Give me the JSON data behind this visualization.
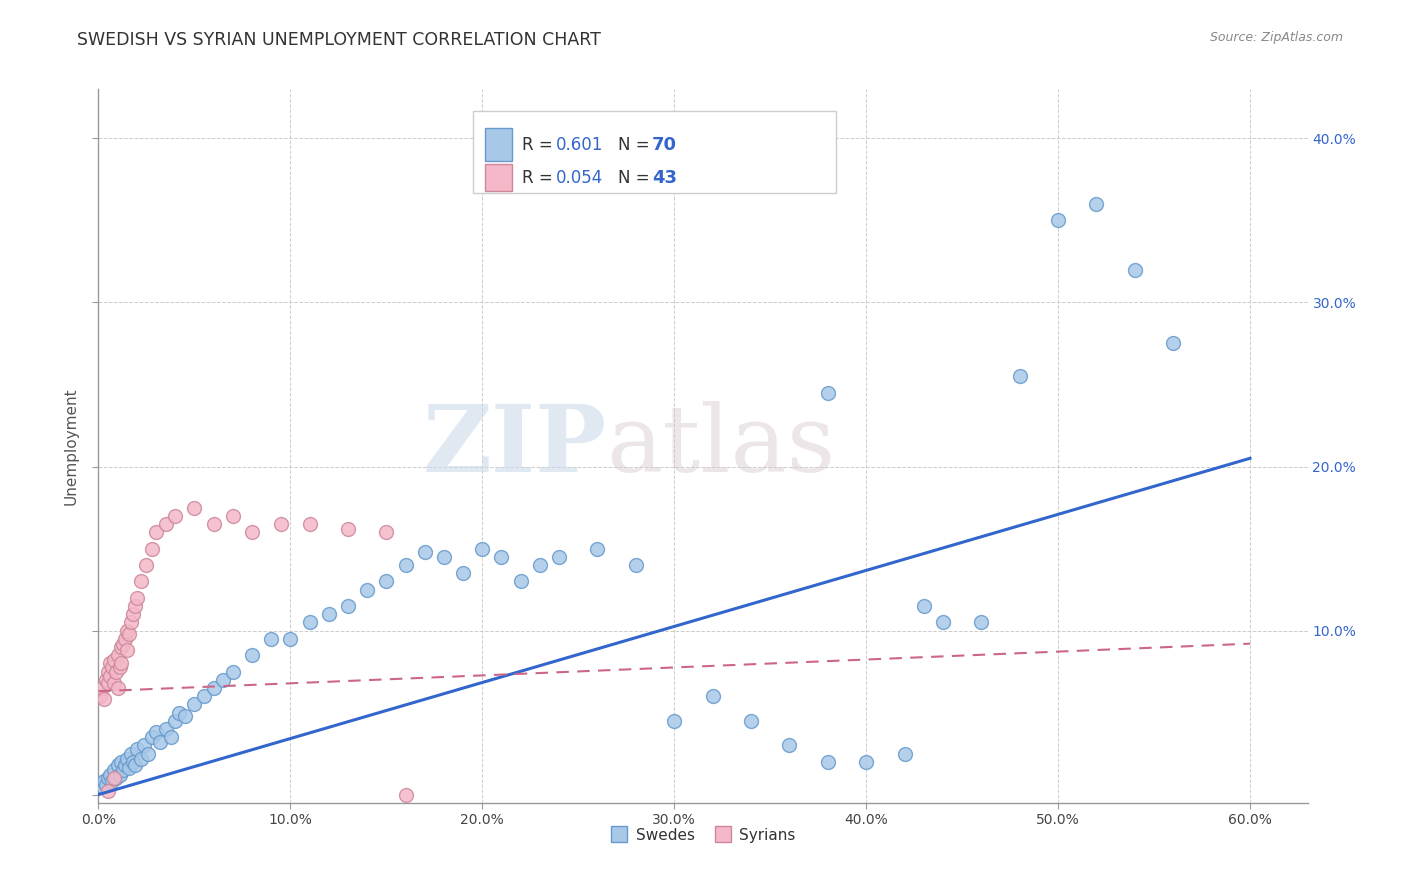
{
  "title": "SWEDISH VS SYRIAN UNEMPLOYMENT CORRELATION CHART",
  "source": "Source: ZipAtlas.com",
  "ylabel": "Unemployment",
  "xlim": [
    0.0,
    0.63
  ],
  "ylim": [
    -0.005,
    0.43
  ],
  "xticks": [
    0.0,
    0.1,
    0.2,
    0.3,
    0.4,
    0.5,
    0.6
  ],
  "yticks": [
    0.0,
    0.1,
    0.2,
    0.3,
    0.4
  ],
  "ytick_labels_right": [
    "",
    "10.0%",
    "20.0%",
    "30.0%",
    "40.0%"
  ],
  "xtick_labels": [
    "0.0%",
    "10.0%",
    "20.0%",
    "30.0%",
    "40.0%",
    "50.0%",
    "60.0%"
  ],
  "background_color": "#ffffff",
  "grid_color": "#cccccc",
  "swedes_color": "#a8c8e8",
  "swedes_edge_color": "#6699cc",
  "syrians_color": "#f4b8c8",
  "syrians_edge_color": "#cc8899",
  "swedes_line_color": "#3366cc",
  "syrians_line_color": "#cc6688",
  "swedes_R": "0.601",
  "swedes_N": "70",
  "syrians_R": "0.054",
  "syrians_N": "43",
  "swedes_trend_x": [
    0.0,
    0.6
  ],
  "swedes_trend_y": [
    0.0,
    0.205
  ],
  "syrians_trend_x": [
    0.0,
    0.6
  ],
  "syrians_trend_y": [
    0.063,
    0.092
  ],
  "swedes_x": [
    0.002,
    0.003,
    0.004,
    0.005,
    0.006,
    0.007,
    0.008,
    0.009,
    0.01,
    0.011,
    0.012,
    0.013,
    0.014,
    0.015,
    0.016,
    0.017,
    0.018,
    0.019,
    0.02,
    0.022,
    0.024,
    0.026,
    0.028,
    0.03,
    0.032,
    0.035,
    0.038,
    0.04,
    0.042,
    0.045,
    0.05,
    0.055,
    0.06,
    0.065,
    0.07,
    0.08,
    0.09,
    0.1,
    0.11,
    0.12,
    0.13,
    0.14,
    0.15,
    0.16,
    0.17,
    0.18,
    0.19,
    0.2,
    0.21,
    0.22,
    0.23,
    0.24,
    0.26,
    0.28,
    0.3,
    0.32,
    0.34,
    0.36,
    0.38,
    0.4,
    0.42,
    0.44,
    0.46,
    0.48,
    0.5,
    0.52,
    0.54,
    0.56,
    0.38,
    0.43
  ],
  "swedes_y": [
    0.005,
    0.008,
    0.006,
    0.01,
    0.012,
    0.008,
    0.015,
    0.01,
    0.018,
    0.012,
    0.02,
    0.015,
    0.018,
    0.022,
    0.016,
    0.025,
    0.02,
    0.018,
    0.028,
    0.022,
    0.03,
    0.025,
    0.035,
    0.038,
    0.032,
    0.04,
    0.035,
    0.045,
    0.05,
    0.048,
    0.055,
    0.06,
    0.065,
    0.07,
    0.075,
    0.085,
    0.095,
    0.095,
    0.105,
    0.11,
    0.115,
    0.125,
    0.13,
    0.14,
    0.148,
    0.145,
    0.135,
    0.15,
    0.145,
    0.13,
    0.14,
    0.145,
    0.15,
    0.14,
    0.045,
    0.06,
    0.045,
    0.03,
    0.02,
    0.02,
    0.025,
    0.105,
    0.105,
    0.255,
    0.35,
    0.36,
    0.32,
    0.275,
    0.245,
    0.115
  ],
  "syrians_x": [
    0.001,
    0.002,
    0.003,
    0.004,
    0.005,
    0.005,
    0.006,
    0.006,
    0.007,
    0.008,
    0.008,
    0.009,
    0.01,
    0.01,
    0.011,
    0.012,
    0.012,
    0.013,
    0.014,
    0.015,
    0.015,
    0.016,
    0.017,
    0.018,
    0.019,
    0.02,
    0.022,
    0.025,
    0.028,
    0.03,
    0.035,
    0.04,
    0.05,
    0.06,
    0.07,
    0.08,
    0.095,
    0.11,
    0.13,
    0.15,
    0.005,
    0.008,
    0.16
  ],
  "syrians_y": [
    0.06,
    0.065,
    0.058,
    0.07,
    0.068,
    0.075,
    0.072,
    0.08,
    0.078,
    0.082,
    0.068,
    0.075,
    0.065,
    0.085,
    0.078,
    0.08,
    0.09,
    0.092,
    0.095,
    0.088,
    0.1,
    0.098,
    0.105,
    0.11,
    0.115,
    0.12,
    0.13,
    0.14,
    0.15,
    0.16,
    0.165,
    0.17,
    0.175,
    0.165,
    0.17,
    0.16,
    0.165,
    0.165,
    0.162,
    0.16,
    0.002,
    0.01,
    0.0
  ],
  "watermark_zip": "ZIP",
  "watermark_atlas": "atlas"
}
